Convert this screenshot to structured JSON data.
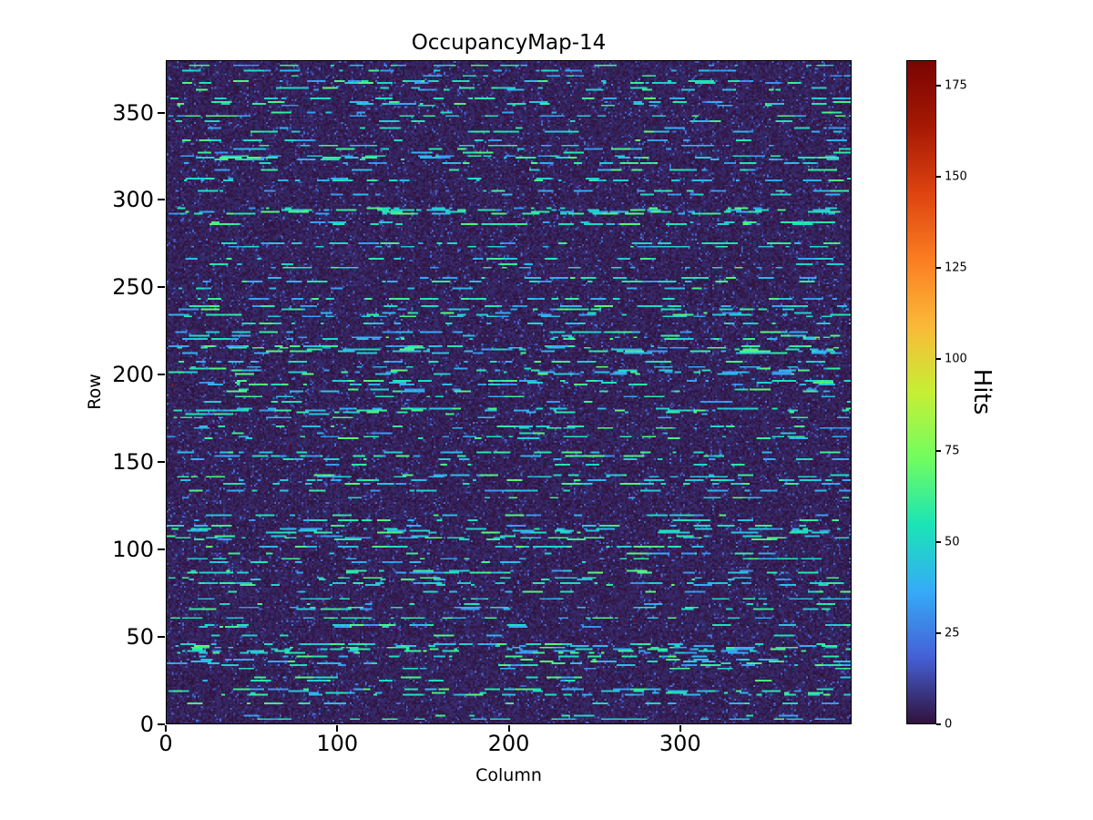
{
  "chart_data": {
    "type": "heatmap",
    "title": "OccupancyMap-14",
    "xlabel": "Column",
    "ylabel": "Row",
    "colorbar_label": "Hits",
    "x_range": [
      0,
      400
    ],
    "y_range": [
      0,
      380
    ],
    "x_ticks": [
      0,
      100,
      200,
      300
    ],
    "y_ticks": [
      0,
      50,
      100,
      150,
      200,
      250,
      300,
      350
    ],
    "colorbar_ticks": [
      0,
      25,
      50,
      75,
      100,
      125,
      150,
      175
    ],
    "vmin": 0,
    "vmax": 182,
    "colormap": "turbo",
    "colormap_stops": [
      {
        "t": 0.0,
        "color": "#30123b"
      },
      {
        "t": 0.1,
        "color": "#4560d6"
      },
      {
        "t": 0.2,
        "color": "#35abf8"
      },
      {
        "t": 0.3,
        "color": "#1ae4b6"
      },
      {
        "t": 0.4,
        "color": "#71fd5f"
      },
      {
        "t": 0.5,
        "color": "#c6ef34"
      },
      {
        "t": 0.6,
        "color": "#fbb938"
      },
      {
        "t": 0.7,
        "color": "#fb7d21"
      },
      {
        "t": 0.8,
        "color": "#dd4410"
      },
      {
        "t": 0.9,
        "color": "#a61903"
      },
      {
        "t": 1.0,
        "color": "#7a0403"
      }
    ],
    "pattern": {
      "description": "Mostly near-zero dark-purple background with sparse horizontal cyan dash streaks of moderate hit counts; a few rare hot pixels reach the colorbar maximum.",
      "seed": 14,
      "cols": 400,
      "rows": 380,
      "base_value": [
        0,
        7
      ],
      "speckle_prob": 0.05,
      "speckle_value": [
        8,
        26
      ],
      "active_row_fraction": 0.4,
      "dashes_per_row": [
        8,
        28
      ],
      "dash_length": [
        2,
        12
      ],
      "dash_value": [
        30,
        68
      ],
      "hot_pixels": 6,
      "hot_value": [
        150,
        182
      ]
    }
  }
}
